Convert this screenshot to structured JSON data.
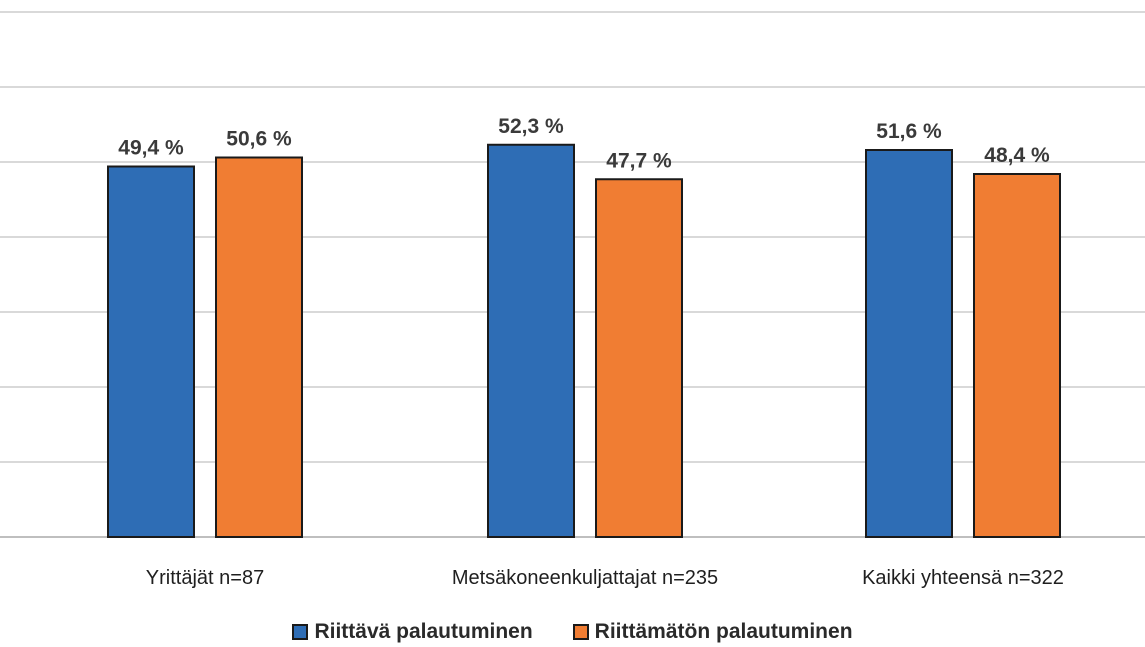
{
  "chart_data": {
    "type": "bar",
    "title": "",
    "xlabel": "",
    "ylabel": "",
    "ylim": [
      0,
      70
    ],
    "grid": true,
    "legend_position": "bottom",
    "categories": [
      "Yrittäjät n=87",
      "Metsäkoneenkuljattajat n=235",
      "Kaikki yhteensä n=322"
    ],
    "series": [
      {
        "name": "Riittävä palautuminen",
        "color": "#2e6db5",
        "values": [
          49.4,
          52.3,
          51.6
        ],
        "labels": [
          "49,4 %",
          "52,3 %",
          "51,6 %"
        ]
      },
      {
        "name": "Riittämätön palautuminen",
        "color": "#f07d33",
        "values": [
          50.6,
          47.7,
          48.4
        ],
        "labels": [
          "50,6 %",
          "47,7 %",
          "48,4 %"
        ]
      }
    ]
  }
}
